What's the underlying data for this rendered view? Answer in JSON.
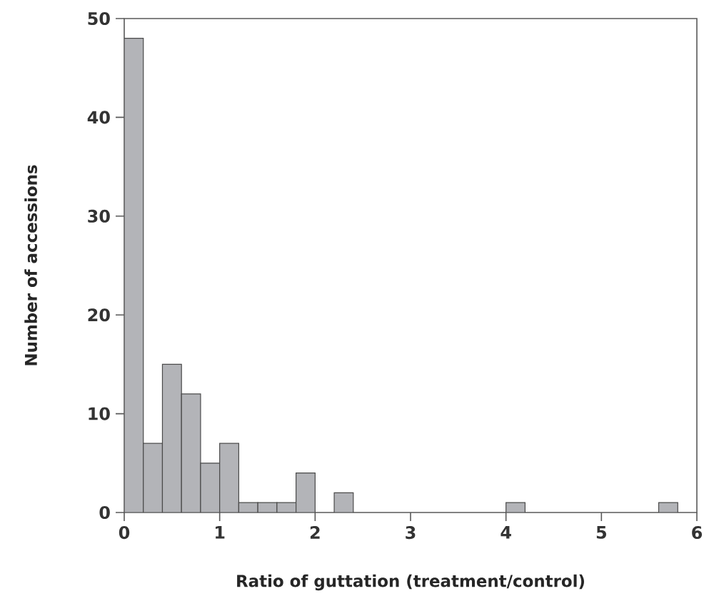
{
  "chart_data": {
    "type": "histogram",
    "xlabel": "Ratio of guttation (treatment/control)",
    "ylabel": "Number of accessions",
    "bins": [
      0,
      0.2,
      0.4,
      0.6,
      0.8,
      1.0,
      1.2,
      1.4,
      1.6,
      1.8,
      2.0,
      2.2,
      2.4,
      2.6,
      2.8,
      3.0,
      3.2,
      3.4,
      3.6,
      3.8,
      4.0,
      4.2,
      4.4,
      4.6,
      4.8,
      5.0,
      5.2,
      5.4,
      5.6,
      5.8,
      6.0
    ],
    "values": [
      48,
      7,
      15,
      12,
      5,
      7,
      1,
      1,
      1,
      4,
      0,
      2,
      0,
      0,
      0,
      0,
      0,
      0,
      0,
      0,
      1,
      0,
      0,
      0,
      0,
      0,
      0,
      0,
      1,
      0
    ],
    "color": "#b3b4b8",
    "xlim": [
      0,
      6
    ],
    "ylim": [
      0,
      50
    ],
    "xticks": [
      0,
      1,
      2,
      3,
      4,
      5,
      6
    ],
    "yticks": [
      0,
      10,
      20,
      30,
      40,
      50
    ],
    "grid": false
  }
}
